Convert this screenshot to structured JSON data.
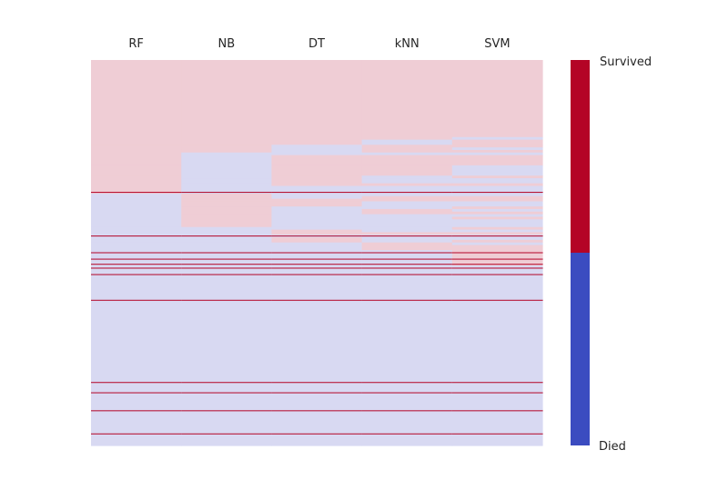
{
  "chart_data": {
    "type": "heatmap",
    "title": "",
    "xlabel": "",
    "ylabel": "",
    "columns": [
      "RF",
      "NB",
      "DT",
      "kNN",
      "SVM"
    ],
    "n_rows": 150,
    "colorbar": {
      "labels": {
        "top": "Survived",
        "bottom": "Died"
      },
      "high_color": "#b40426",
      "low_color": "#3b4cc0",
      "position": "right"
    },
    "cell_colors": {
      "survived_light": "#efcdd5",
      "died_light": "#d8d9f2",
      "survived_strong": "#b40426",
      "died_strong": "#3b4cc0"
    },
    "rows_groups": [
      {
        "rows": [
          0,
          30
        ],
        "values": [
          "S",
          "S",
          "S",
          "S",
          "S"
        ]
      },
      {
        "rows": [
          30,
          31
        ],
        "values": [
          "S",
          "S",
          "S",
          "S",
          "D"
        ]
      },
      {
        "rows": [
          31,
          33
        ],
        "values": [
          "S",
          "S",
          "S",
          "D",
          "S"
        ]
      },
      {
        "rows": [
          33,
          34
        ],
        "values": [
          "S",
          "S",
          "D",
          "S",
          "S"
        ]
      },
      {
        "rows": [
          34,
          35
        ],
        "values": [
          "S",
          "S",
          "D",
          "S",
          "D"
        ]
      },
      {
        "rows": [
          35,
          36
        ],
        "values": [
          "S",
          "S",
          "D",
          "S",
          "S"
        ]
      },
      {
        "rows": [
          36,
          37
        ],
        "values": [
          "S",
          "D",
          "D",
          "D",
          "D"
        ]
      },
      {
        "rows": [
          37,
          41
        ],
        "values": [
          "S",
          "D",
          "S",
          "S",
          "S"
        ]
      },
      {
        "rows": [
          41,
          45
        ],
        "values": [
          "S",
          "D",
          "S",
          "S",
          "D"
        ]
      },
      {
        "rows": [
          45,
          46
        ],
        "values": [
          "S",
          "D",
          "S",
          "D",
          "S"
        ]
      },
      {
        "rows": [
          46,
          48
        ],
        "values": [
          "S",
          "D",
          "S",
          "D",
          "D"
        ]
      },
      {
        "rows": [
          48,
          49
        ],
        "values": [
          "S",
          "D",
          "S",
          "S",
          "S"
        ]
      },
      {
        "rows": [
          49,
          51
        ],
        "values": [
          "S",
          "D",
          "D",
          "D",
          "D"
        ]
      },
      {
        "rows": [
          51,
          52
        ],
        "values": [
          "SS",
          "DS",
          "DS",
          "DS",
          "DS"
        ]
      },
      {
        "rows": [
          52,
          53
        ],
        "values": [
          "D",
          "S",
          "D",
          "D",
          "D"
        ]
      },
      {
        "rows": [
          53,
          54
        ],
        "values": [
          "D",
          "S",
          "D",
          "S",
          "S"
        ]
      },
      {
        "rows": [
          54,
          55
        ],
        "values": [
          "D",
          "S",
          "S",
          "S",
          "S"
        ]
      },
      {
        "rows": [
          55,
          57
        ],
        "values": [
          "D",
          "S",
          "S",
          "D",
          "D"
        ]
      },
      {
        "rows": [
          57,
          58
        ],
        "values": [
          "D",
          "S",
          "D",
          "D",
          "S"
        ]
      },
      {
        "rows": [
          58,
          59
        ],
        "values": [
          "D",
          "S",
          "D",
          "S",
          "D"
        ]
      },
      {
        "rows": [
          59,
          60
        ],
        "values": [
          "D",
          "S",
          "D",
          "S",
          "S"
        ]
      },
      {
        "rows": [
          60,
          61
        ],
        "values": [
          "D",
          "S",
          "D",
          "D",
          "D"
        ]
      },
      {
        "rows": [
          61,
          62
        ],
        "values": [
          "D",
          "S",
          "D",
          "D",
          "S"
        ]
      },
      {
        "rows": [
          62,
          65
        ],
        "values": [
          "D",
          "S",
          "D",
          "D",
          "D"
        ]
      },
      {
        "rows": [
          65,
          66
        ],
        "values": [
          "D",
          "D",
          "D",
          "D",
          "S"
        ]
      },
      {
        "rows": [
          66,
          67
        ],
        "values": [
          "D",
          "D",
          "S",
          "D",
          "D"
        ]
      },
      {
        "rows": [
          67,
          68
        ],
        "values": [
          "D",
          "D",
          "S",
          "S",
          "S"
        ]
      },
      {
        "rows": [
          68,
          69
        ],
        "values": [
          "DS",
          "DS",
          "DS",
          "DS",
          "DS"
        ]
      },
      {
        "rows": [
          69,
          70
        ],
        "values": [
          "D",
          "D",
          "S",
          "D",
          "D"
        ]
      },
      {
        "rows": [
          70,
          71
        ],
        "values": [
          "D",
          "D",
          "S",
          "D",
          "S"
        ]
      },
      {
        "rows": [
          71,
          72
        ],
        "values": [
          "D",
          "D",
          "D",
          "S",
          "D"
        ]
      },
      {
        "rows": [
          72,
          74
        ],
        "values": [
          "D",
          "D",
          "D",
          "S",
          "S"
        ]
      },
      {
        "rows": [
          74,
          76
        ],
        "values": [
          "DS",
          "DS",
          "DS",
          "DS",
          "SS"
        ]
      },
      {
        "rows": [
          76,
          77
        ],
        "values": [
          "D",
          "D",
          "D",
          "D",
          "S"
        ]
      },
      {
        "rows": [
          77,
          78
        ],
        "values": [
          "DS",
          "DS",
          "DS",
          "DS",
          "SS"
        ]
      },
      {
        "rows": [
          78,
          79
        ],
        "values": [
          "D",
          "D",
          "D",
          "D",
          "S"
        ]
      },
      {
        "rows": [
          79,
          80
        ],
        "values": [
          "DS",
          "DS",
          "DS",
          "DS",
          "SS"
        ]
      },
      {
        "rows": [
          80,
          82
        ],
        "values": [
          "DS",
          "DS",
          "DS",
          "DS",
          "DS"
        ]
      },
      {
        "rows": [
          82,
          83
        ],
        "values": [
          "D",
          "D",
          "D",
          "D",
          "D"
        ]
      },
      {
        "rows": [
          83,
          84
        ],
        "values": [
          "DS",
          "DS",
          "DS",
          "DS",
          "DS"
        ]
      },
      {
        "rows": [
          84,
          93
        ],
        "values": [
          "D",
          "D",
          "D",
          "D",
          "D"
        ]
      },
      {
        "rows": [
          93,
          94
        ],
        "values": [
          "DS",
          "DS",
          "DS",
          "DS",
          "DS"
        ]
      },
      {
        "rows": [
          94,
          125
        ],
        "values": [
          "D",
          "D",
          "D",
          "D",
          "D"
        ]
      },
      {
        "rows": [
          125,
          126
        ],
        "values": [
          "DS",
          "DS",
          "DS",
          "DS",
          "DS"
        ]
      },
      {
        "rows": [
          126,
          129
        ],
        "values": [
          "D",
          "D",
          "D",
          "D",
          "D"
        ]
      },
      {
        "rows": [
          129,
          130
        ],
        "values": [
          "DS",
          "DS",
          "DS",
          "DS",
          "DS"
        ]
      },
      {
        "rows": [
          130,
          136
        ],
        "values": [
          "D",
          "D",
          "D",
          "D",
          "D"
        ]
      },
      {
        "rows": [
          136,
          137
        ],
        "values": [
          "DS",
          "DS",
          "DS",
          "DS",
          "DS"
        ]
      },
      {
        "rows": [
          137,
          145
        ],
        "values": [
          "D",
          "D",
          "D",
          "D",
          "D"
        ]
      },
      {
        "rows": [
          145,
          146
        ],
        "values": [
          "DS",
          "DS",
          "DS",
          "DS",
          "DS"
        ]
      },
      {
        "rows": [
          146,
          150
        ],
        "values": [
          "D",
          "D",
          "D",
          "D",
          "D"
        ]
      }
    ]
  }
}
